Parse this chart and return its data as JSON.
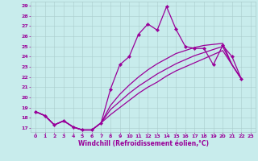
{
  "xlabel": "Windchill (Refroidissement éolien,°C)",
  "xlim_min": -0.5,
  "xlim_max": 23.5,
  "ylim_min": 16.6,
  "ylim_max": 29.4,
  "yticks": [
    17,
    18,
    19,
    20,
    21,
    22,
    23,
    24,
    25,
    26,
    27,
    28,
    29
  ],
  "xticks": [
    0,
    1,
    2,
    3,
    4,
    5,
    6,
    7,
    8,
    9,
    10,
    11,
    12,
    13,
    14,
    15,
    16,
    17,
    18,
    19,
    20,
    21,
    22,
    23
  ],
  "bg_color": "#c8ecec",
  "line_color": "#990099",
  "grid_color": "#aacccc",
  "curve1_x": [
    0,
    1,
    2,
    3,
    4,
    5,
    6,
    7,
    8,
    9,
    10,
    11,
    12,
    13,
    14,
    15,
    16,
    17,
    18,
    19,
    20,
    21,
    22
  ],
  "curve1_y": [
    18.6,
    18.2,
    17.3,
    17.7,
    17.1,
    16.8,
    16.8,
    17.5,
    20.8,
    23.2,
    24.0,
    26.2,
    27.2,
    26.6,
    28.9,
    26.7,
    25.0,
    24.8,
    24.8,
    23.2,
    25.1,
    24.0,
    21.8
  ],
  "curve2_x": [
    0,
    1,
    2,
    3,
    4,
    5,
    6,
    7,
    8,
    9,
    10,
    11,
    12,
    13,
    14,
    15,
    16,
    17,
    18,
    19,
    20,
    21,
    22
  ],
  "curve2_y": [
    18.6,
    18.2,
    17.3,
    17.7,
    17.1,
    16.8,
    16.8,
    17.5,
    19.2,
    20.3,
    21.2,
    22.0,
    22.7,
    23.3,
    23.8,
    24.3,
    24.6,
    24.9,
    25.1,
    25.2,
    25.3,
    23.2,
    21.8
  ],
  "curve3_x": [
    0,
    1,
    2,
    3,
    4,
    5,
    6,
    7,
    8,
    9,
    10,
    11,
    12,
    13,
    14,
    15,
    16,
    17,
    18,
    19,
    20,
    21,
    22
  ],
  "curve3_y": [
    18.6,
    18.2,
    17.3,
    17.7,
    17.1,
    16.8,
    16.8,
    17.5,
    18.8,
    19.6,
    20.4,
    21.1,
    21.7,
    22.3,
    22.8,
    23.3,
    23.7,
    24.1,
    24.4,
    24.7,
    25.0,
    23.2,
    21.8
  ],
  "curve4_x": [
    0,
    1,
    2,
    3,
    4,
    5,
    6,
    7,
    8,
    9,
    10,
    11,
    12,
    13,
    14,
    15,
    16,
    17,
    18,
    19,
    20,
    21,
    22
  ],
  "curve4_y": [
    18.6,
    18.2,
    17.3,
    17.7,
    17.1,
    16.8,
    16.8,
    17.5,
    18.3,
    19.0,
    19.7,
    20.4,
    21.0,
    21.5,
    22.1,
    22.6,
    23.0,
    23.4,
    23.8,
    24.2,
    24.6,
    23.2,
    21.8
  ],
  "tick_fontsize": 4.5,
  "xlabel_fontsize": 5.5
}
